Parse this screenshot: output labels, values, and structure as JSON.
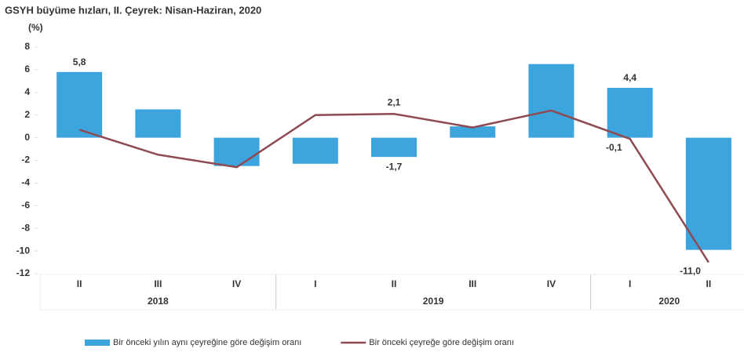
{
  "chart_data": {
    "type": "bar-line",
    "title": "GSYH büyüme hızları, II. Çeyrek: Nisan-Haziran, 2020",
    "y_label": "(%)",
    "groups": [
      {
        "label": "2018",
        "categories": [
          "II",
          "III",
          "IV"
        ]
      },
      {
        "label": "2019",
        "categories": [
          "I",
          "II",
          "III",
          "IV"
        ]
      },
      {
        "label": "2020",
        "categories": [
          "I",
          "II"
        ]
      }
    ],
    "series": [
      {
        "name": "Bir önceki yılın aynı çeyreğine göre değişim oranı",
        "type": "bar",
        "color": "#3da5de",
        "values": [
          5.8,
          2.5,
          -2.5,
          -2.3,
          -1.7,
          1.0,
          6.5,
          4.4,
          -9.9
        ],
        "value_labels": [
          "5,8",
          null,
          null,
          null,
          "-1,7",
          null,
          null,
          "4,4",
          null
        ]
      },
      {
        "name": "Bir önceki çeyreğe göre değişim oranı",
        "type": "line",
        "color": "#8e4b52",
        "values": [
          0.7,
          -1.5,
          -2.6,
          2.0,
          2.1,
          0.9,
          2.4,
          -0.1,
          -11.0
        ],
        "value_labels": [
          null,
          null,
          null,
          null,
          "2,1",
          null,
          null,
          "-0,1",
          "-11,0"
        ]
      }
    ],
    "ylim": [
      -12,
      8
    ],
    "yticks": [
      8,
      6,
      4,
      2,
      0,
      -2,
      -4,
      -6,
      -8,
      -10,
      -12
    ]
  }
}
